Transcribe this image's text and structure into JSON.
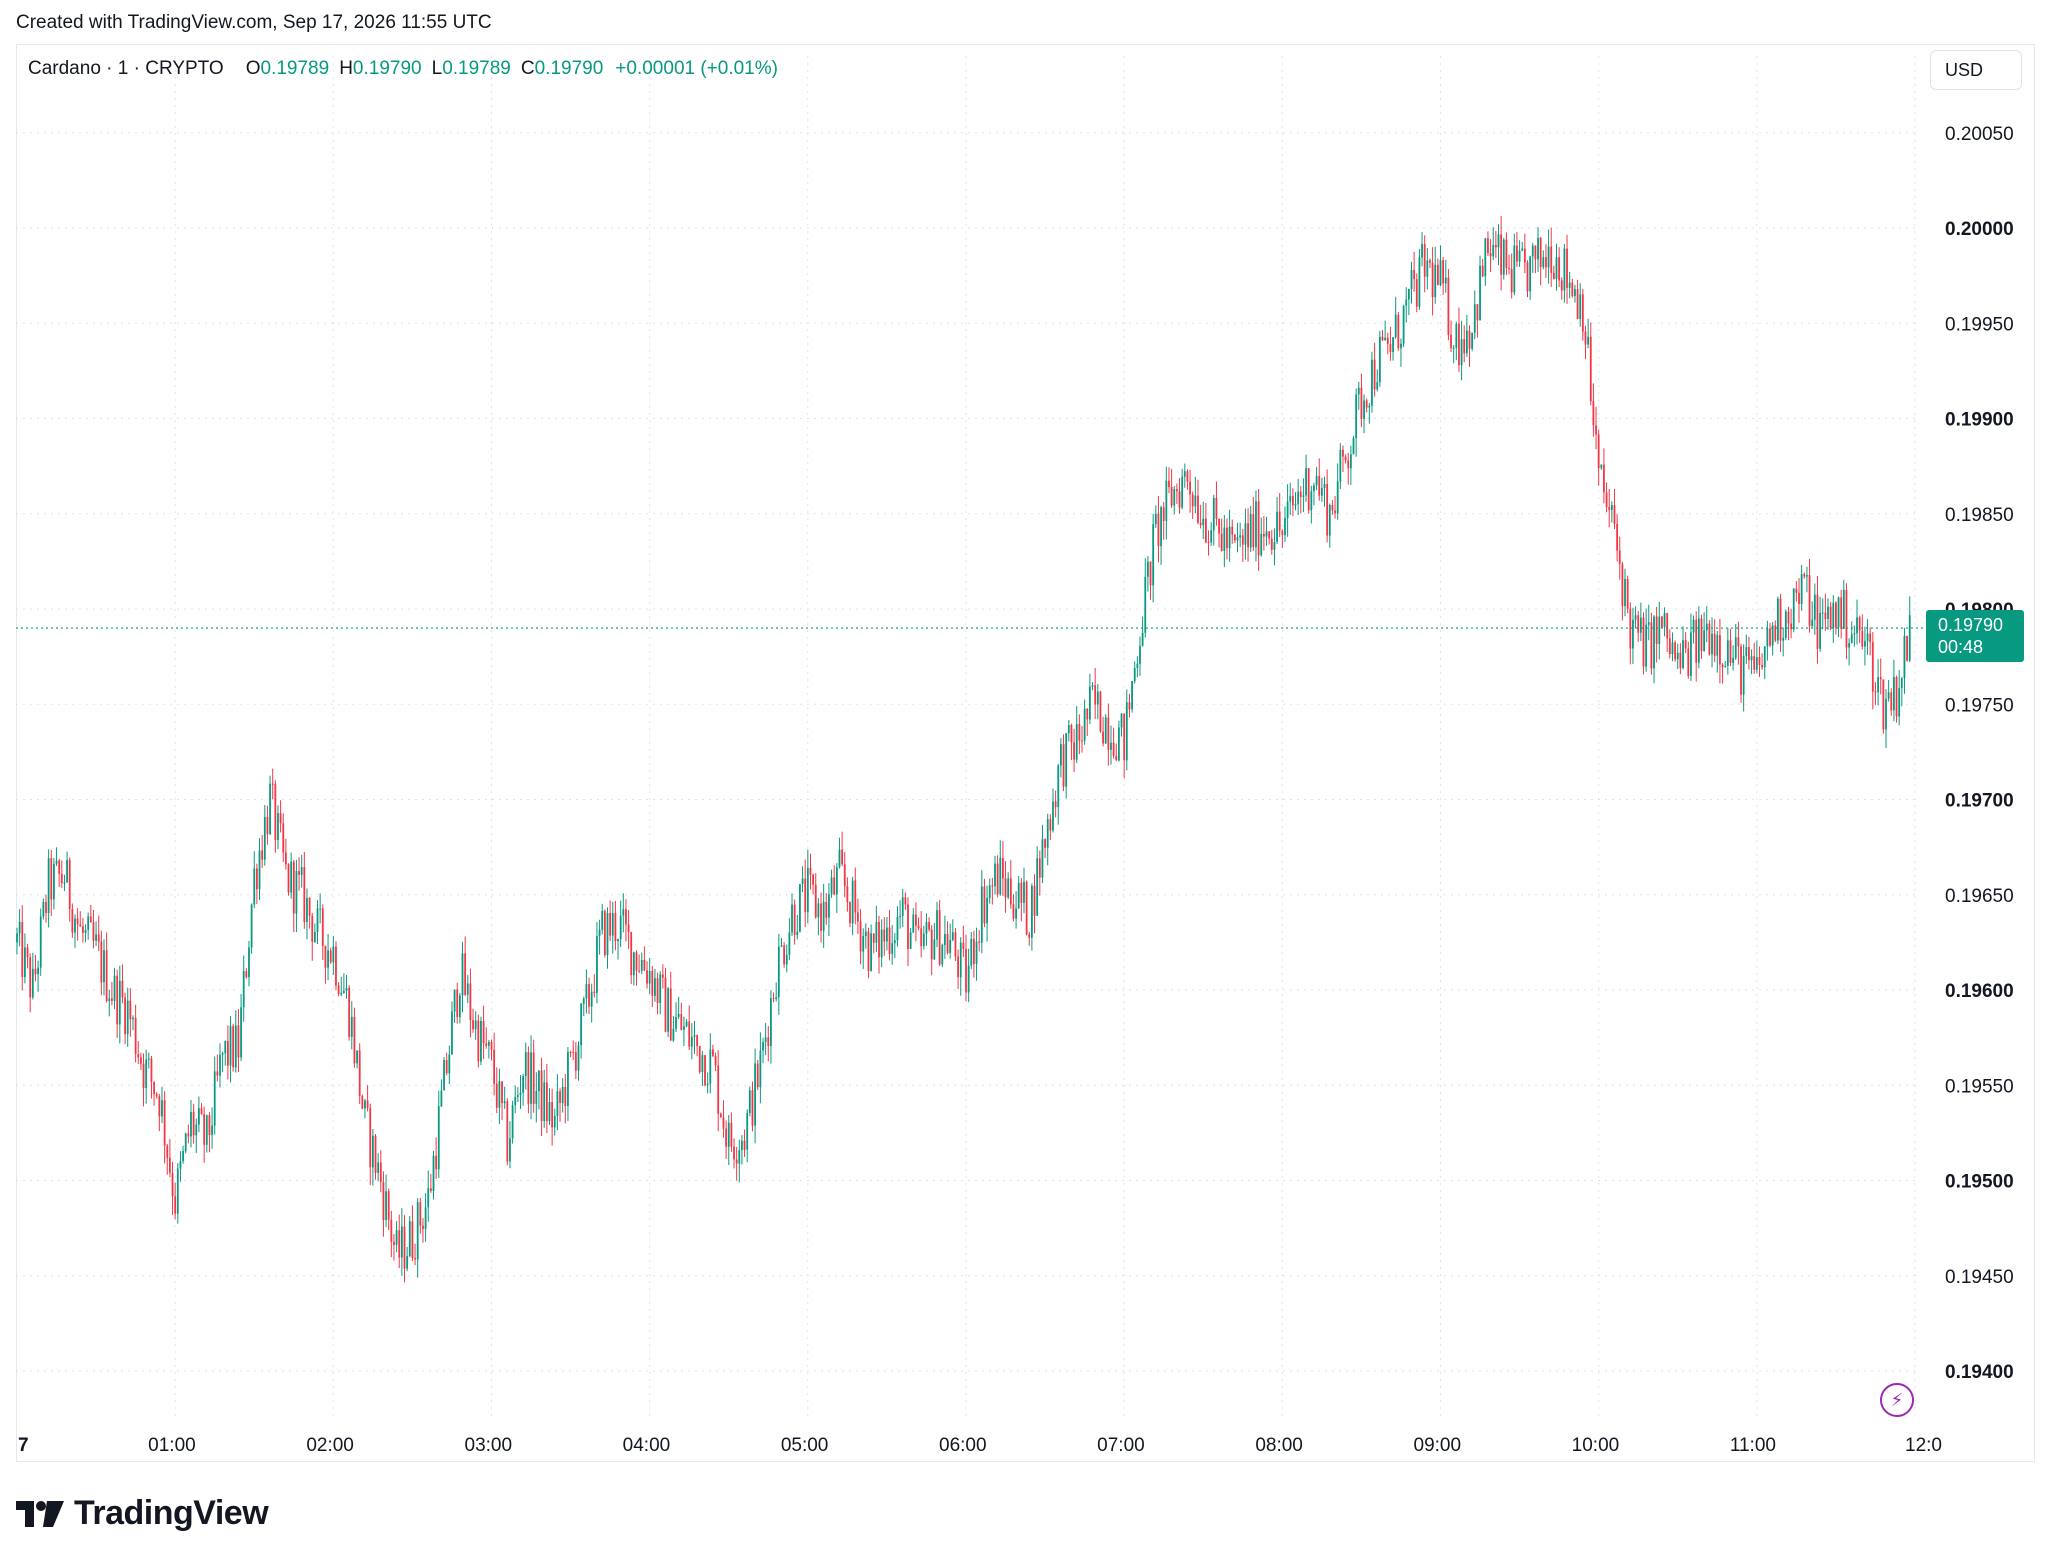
{
  "caption": "Created with TradingView.com, Sep 17, 2026 11:55 UTC",
  "legend": {
    "symbol": "Cardano · 1 · CRYPTO",
    "o_label": "O",
    "o_value": "0.19789",
    "h_label": "H",
    "h_value": "0.19790",
    "l_label": "L",
    "l_value": "0.19789",
    "c_label": "C",
    "c_value": "0.19790",
    "change": "+0.00001 (+0.01%)"
  },
  "currency": "USD",
  "price_tag": {
    "price": "0.19790",
    "countdown": "00:48"
  },
  "brand": {
    "name": "TradingView"
  },
  "colors": {
    "up": "#089981",
    "down": "#f23645",
    "grid": "#e0e3eb",
    "text": "#131722",
    "accent": "#9c27b0"
  },
  "icons": {
    "alert": "lightning-bolt-icon",
    "logo": "tradingview-logo-icon"
  },
  "chart_data": {
    "type": "candlestick",
    "ylim": [
      0.1937,
      0.2008
    ],
    "y_ticks": [
      {
        "value": 0.2005,
        "label": "0.20050",
        "major": false
      },
      {
        "value": 0.2,
        "label": "0.20000",
        "major": true
      },
      {
        "value": 0.1995,
        "label": "0.19950",
        "major": false
      },
      {
        "value": 0.199,
        "label": "0.19900",
        "major": true
      },
      {
        "value": 0.1985,
        "label": "0.19850",
        "major": false
      },
      {
        "value": 0.198,
        "label": "0.19800",
        "major": true
      },
      {
        "value": 0.1975,
        "label": "0.19750",
        "major": false
      },
      {
        "value": 0.197,
        "label": "0.19700",
        "major": true
      },
      {
        "value": 0.1965,
        "label": "0.19650",
        "major": false
      },
      {
        "value": 0.196,
        "label": "0.19600",
        "major": true
      },
      {
        "value": 0.1955,
        "label": "0.19550",
        "major": false
      },
      {
        "value": 0.195,
        "label": "0.19500",
        "major": true
      },
      {
        "value": 0.1945,
        "label": "0.19450",
        "major": false
      },
      {
        "value": 0.194,
        "label": "0.19400",
        "major": true
      }
    ],
    "x_range_minutes": [
      0,
      720
    ],
    "x_ticks": [
      {
        "minute": 0,
        "label": "7"
      },
      {
        "minute": 60,
        "label": "01:00"
      },
      {
        "minute": 120,
        "label": "02:00"
      },
      {
        "minute": 180,
        "label": "03:00"
      },
      {
        "minute": 240,
        "label": "04:00"
      },
      {
        "minute": 300,
        "label": "05:00"
      },
      {
        "minute": 360,
        "label": "06:00"
      },
      {
        "minute": 420,
        "label": "07:00"
      },
      {
        "minute": 480,
        "label": "08:00"
      },
      {
        "minute": 540,
        "label": "09:00"
      },
      {
        "minute": 600,
        "label": "10:00"
      },
      {
        "minute": 660,
        "label": "11:00"
      },
      {
        "minute": 720,
        "label": "12:0"
      }
    ],
    "last_price": 0.1979,
    "close_path": [
      [
        0,
        0.19625
      ],
      [
        6,
        0.196
      ],
      [
        12,
        0.19655
      ],
      [
        18,
        0.1966
      ],
      [
        24,
        0.1963
      ],
      [
        30,
        0.1962
      ],
      [
        36,
        0.196
      ],
      [
        42,
        0.1959
      ],
      [
        48,
        0.1956
      ],
      [
        54,
        0.19545
      ],
      [
        60,
        0.1949
      ],
      [
        66,
        0.1953
      ],
      [
        72,
        0.1952
      ],
      [
        78,
        0.19565
      ],
      [
        84,
        0.1957
      ],
      [
        90,
        0.1966
      ],
      [
        96,
        0.197
      ],
      [
        102,
        0.1966
      ],
      [
        108,
        0.1965
      ],
      [
        114,
        0.1963
      ],
      [
        120,
        0.1962
      ],
      [
        126,
        0.1959
      ],
      [
        132,
        0.1953
      ],
      [
        138,
        0.195
      ],
      [
        144,
        0.1946
      ],
      [
        150,
        0.1947
      ],
      [
        156,
        0.1949
      ],
      [
        162,
        0.1955
      ],
      [
        168,
        0.1961
      ],
      [
        174,
        0.1958
      ],
      [
        180,
        0.1956
      ],
      [
        186,
        0.1952
      ],
      [
        192,
        0.1956
      ],
      [
        198,
        0.19545
      ],
      [
        204,
        0.1953
      ],
      [
        210,
        0.1956
      ],
      [
        216,
        0.1959
      ],
      [
        222,
        0.1963
      ],
      [
        228,
        0.19635
      ],
      [
        234,
        0.1962
      ],
      [
        240,
        0.1961
      ],
      [
        246,
        0.1959
      ],
      [
        252,
        0.1958
      ],
      [
        258,
        0.1957
      ],
      [
        264,
        0.1956
      ],
      [
        270,
        0.1952
      ],
      [
        276,
        0.19525
      ],
      [
        282,
        0.1956
      ],
      [
        288,
        0.1961
      ],
      [
        294,
        0.1964
      ],
      [
        300,
        0.1965
      ],
      [
        306,
        0.1964
      ],
      [
        312,
        0.1966
      ],
      [
        318,
        0.1964
      ],
      [
        324,
        0.1962
      ],
      [
        330,
        0.1963
      ],
      [
        336,
        0.1964
      ],
      [
        342,
        0.1962
      ],
      [
        348,
        0.1963
      ],
      [
        354,
        0.19625
      ],
      [
        360,
        0.19605
      ],
      [
        366,
        0.19645
      ],
      [
        372,
        0.1966
      ],
      [
        378,
        0.1965
      ],
      [
        384,
        0.1964
      ],
      [
        390,
        0.1968
      ],
      [
        396,
        0.1972
      ],
      [
        402,
        0.1973
      ],
      [
        408,
        0.1975
      ],
      [
        414,
        0.1974
      ],
      [
        420,
        0.1973
      ],
      [
        426,
        0.1979
      ],
      [
        432,
        0.1984
      ],
      [
        438,
        0.1986
      ],
      [
        444,
        0.1987
      ],
      [
        450,
        0.1985
      ],
      [
        456,
        0.1984
      ],
      [
        462,
        0.1983
      ],
      [
        468,
        0.1984
      ],
      [
        474,
        0.19845
      ],
      [
        480,
        0.1984
      ],
      [
        486,
        0.1986
      ],
      [
        492,
        0.1987
      ],
      [
        498,
        0.1985
      ],
      [
        504,
        0.1988
      ],
      [
        510,
        0.1991
      ],
      [
        516,
        0.1993
      ],
      [
        522,
        0.1994
      ],
      [
        528,
        0.1996
      ],
      [
        534,
        0.1998
      ],
      [
        540,
        0.1997
      ],
      [
        546,
        0.1994
      ],
      [
        552,
        0.1995
      ],
      [
        558,
        0.1999
      ],
      [
        564,
        0.1998
      ],
      [
        570,
        0.19975
      ],
      [
        576,
        0.1998
      ],
      [
        582,
        0.1999
      ],
      [
        588,
        0.19975
      ],
      [
        594,
        0.1996
      ],
      [
        600,
        0.1987
      ],
      [
        606,
        0.1984
      ],
      [
        612,
        0.1979
      ],
      [
        618,
        0.1978
      ],
      [
        624,
        0.1979
      ],
      [
        630,
        0.1977
      ],
      [
        636,
        0.1978
      ],
      [
        642,
        0.1979
      ],
      [
        648,
        0.1978
      ],
      [
        654,
        0.1977
      ],
      [
        660,
        0.19765
      ],
      [
        666,
        0.1979
      ],
      [
        672,
        0.198
      ],
      [
        678,
        0.1981
      ],
      [
        684,
        0.1979
      ],
      [
        690,
        0.198
      ],
      [
        696,
        0.1979
      ],
      [
        702,
        0.1978
      ],
      [
        708,
        0.1975
      ],
      [
        714,
        0.1976
      ],
      [
        718,
        0.1979
      ]
    ]
  }
}
